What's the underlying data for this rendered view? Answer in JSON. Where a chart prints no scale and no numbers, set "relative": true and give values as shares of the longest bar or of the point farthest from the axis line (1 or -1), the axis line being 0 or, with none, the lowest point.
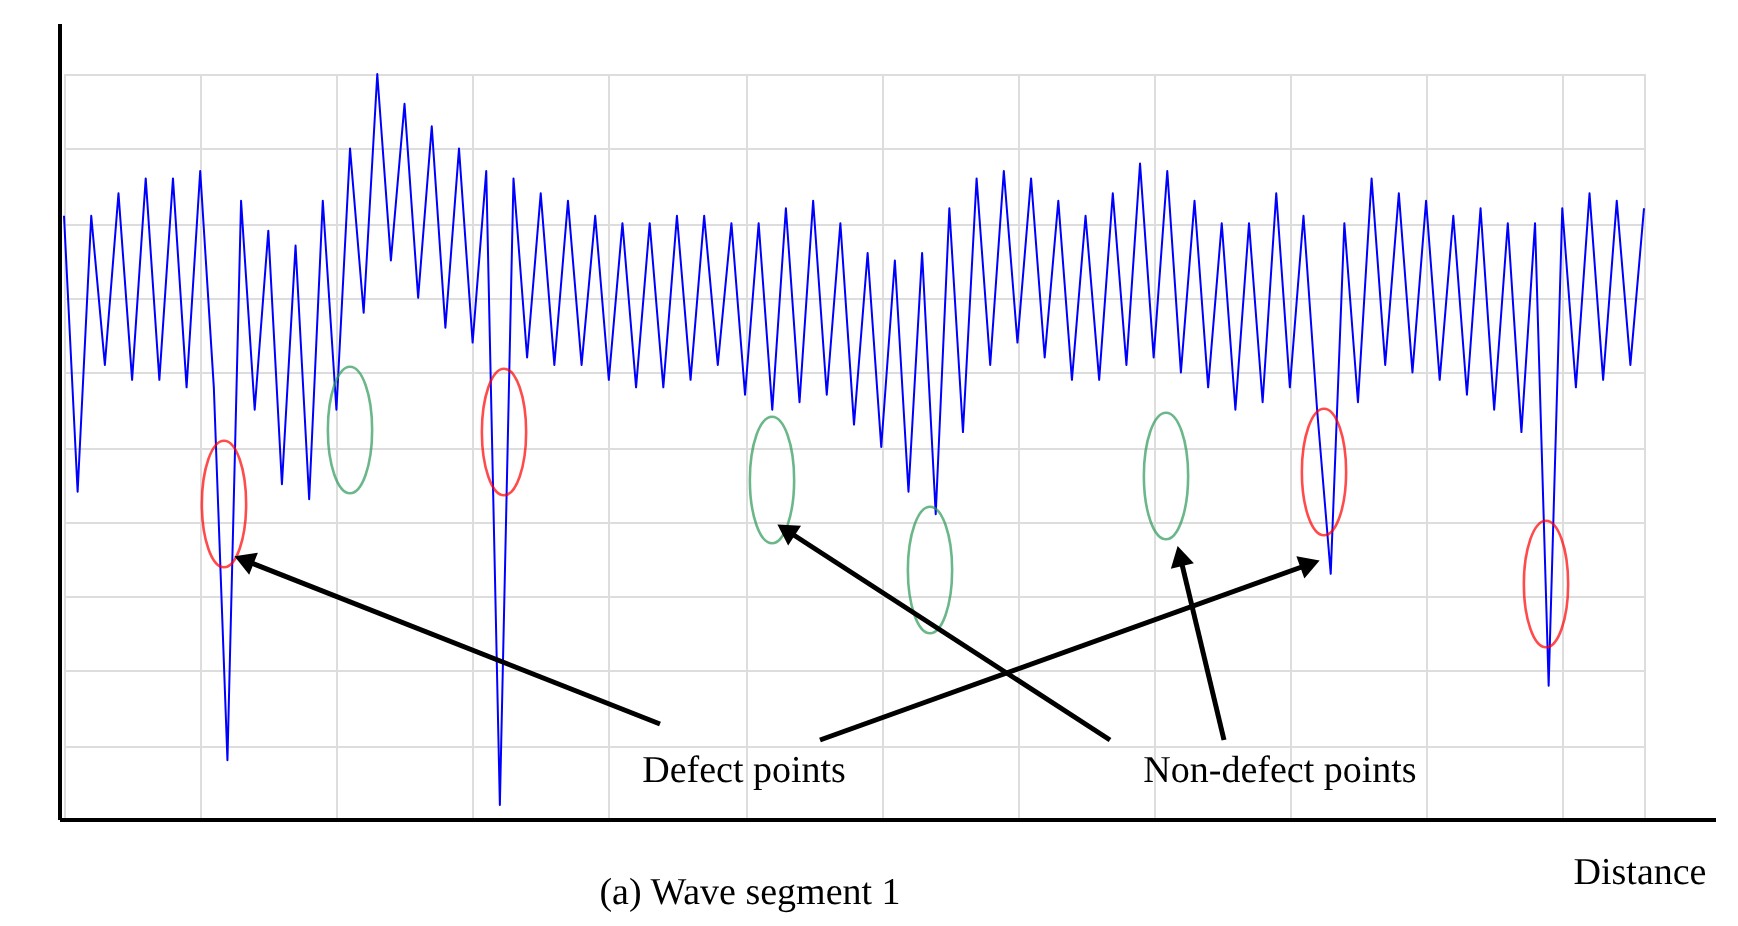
{
  "chart_data": {
    "type": "line",
    "relative": true,
    "xlabel": "Distance",
    "grid": true,
    "marker": "none",
    "line_style": "solid",
    "annotations": [
      "Defect points",
      "Non-defect  points",
      "(a) Wave segment 1"
    ],
    "categories": [
      null,
      null,
      null,
      null,
      null,
      null,
      null,
      null,
      null,
      null,
      null,
      null,
      null,
      null,
      null,
      null,
      null,
      null,
      null,
      null,
      null,
      null,
      null,
      null,
      null,
      null,
      null,
      null,
      null,
      null,
      null,
      null,
      null,
      null,
      null,
      null,
      null,
      null,
      null,
      null,
      null,
      null,
      null,
      null,
      null,
      null,
      null,
      null,
      null,
      null,
      null,
      null,
      null,
      null,
      null,
      null,
      null,
      null,
      null,
      null,
      null,
      null,
      null,
      null,
      null,
      null,
      null,
      null,
      null,
      null,
      null,
      null,
      null,
      null,
      null,
      null,
      null,
      null,
      null,
      null,
      null,
      null,
      null,
      null,
      null,
      null,
      null,
      null,
      null,
      null,
      null,
      null,
      null,
      null,
      null,
      null,
      null,
      null,
      null,
      null,
      null,
      null,
      null,
      null,
      null,
      null,
      null,
      null,
      null,
      null,
      null,
      null,
      null,
      null,
      null,
      null,
      null
    ],
    "series": [
      {
        "color": "#0000ff",
        "values": [
          0.81,
          0.44,
          0.81,
          0.61,
          0.84,
          0.59,
          0.86,
          0.59,
          0.86,
          0.58,
          0.87,
          0.58,
          0.08,
          0.83,
          0.55,
          0.79,
          0.45,
          0.77,
          0.43,
          0.83,
          0.55,
          0.9,
          0.68,
          1.0,
          0.75,
          0.96,
          0.7,
          0.93,
          0.66,
          0.9,
          0.64,
          0.87,
          0.02,
          0.86,
          0.62,
          0.84,
          0.61,
          0.83,
          0.61,
          0.81,
          0.59,
          0.8,
          0.58,
          0.8,
          0.58,
          0.81,
          0.59,
          0.81,
          0.61,
          0.8,
          0.57,
          0.8,
          0.55,
          0.82,
          0.56,
          0.83,
          0.57,
          0.8,
          0.53,
          0.76,
          0.5,
          0.75,
          0.44,
          0.76,
          0.41,
          0.82,
          0.52,
          0.86,
          0.61,
          0.87,
          0.64,
          0.86,
          0.62,
          0.83,
          0.59,
          0.81,
          0.59,
          0.84,
          0.61,
          0.88,
          0.62,
          0.87,
          0.6,
          0.83,
          0.58,
          0.8,
          0.55,
          0.8,
          0.56,
          0.84,
          0.58,
          0.81,
          0.55,
          0.33,
          0.8,
          0.56,
          0.86,
          0.61,
          0.84,
          0.6,
          0.83,
          0.59,
          0.81,
          0.57,
          0.82,
          0.55,
          0.8,
          0.52,
          0.8,
          0.18,
          0.82,
          0.58,
          0.84,
          0.59,
          0.83,
          0.61,
          0.82
        ]
      }
    ]
  }
}
